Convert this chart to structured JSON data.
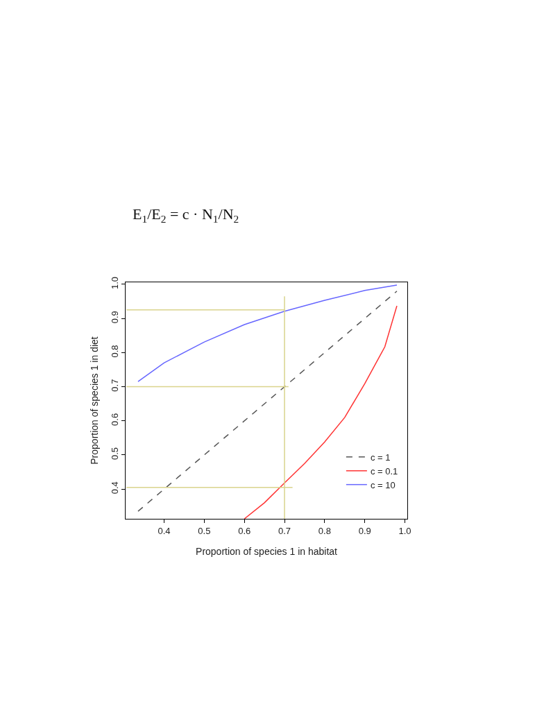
{
  "chart_data": {
    "type": "line",
    "xlabel": "Proportion of species 1 in habitat",
    "ylabel": "Proportion of species 1 in diet",
    "annotations": [
      "E$_{1}$/E$_{2}$ = c · N$_{1}$/N$_{2}$"
    ],
    "xlim": [
      0.304,
      1.006
    ],
    "ylim": [
      0.313,
      1.006
    ],
    "xticks": [
      0.4,
      0.5,
      0.6,
      0.7,
      0.8,
      0.9,
      {
        "value": 1,
        "label": "1.0"
      }
    ],
    "yticks": [
      0.4,
      0.5,
      0.6,
      0.7,
      0.8,
      0.9,
      {
        "value": 1,
        "label": "1.0"
      }
    ],
    "legend": "bottom right",
    "series": [
      {
        "name": "c = 1",
        "color": "#555555",
        "line_style": "dashed",
        "x": [
          0.335,
          0.98
        ],
        "values": [
          0.335,
          0.98
        ]
      },
      {
        "name": "c = 0.1",
        "color": "#ff3333",
        "x": [
          0.6,
          0.65,
          0.7,
          0.75,
          0.8,
          0.85,
          0.9,
          0.95,
          0.98
        ],
        "values": [
          0.313,
          0.36,
          0.418,
          0.475,
          0.538,
          0.61,
          0.709,
          0.817,
          0.937
        ]
      },
      {
        "name": "c = 10",
        "color": "#6666ff",
        "x": [
          0.335,
          0.4,
          0.5,
          0.6,
          0.7,
          0.8,
          0.9,
          0.98
        ],
        "values": [
          0.715,
          0.77,
          0.831,
          0.882,
          0.921,
          0.953,
          0.982,
          0.998
        ]
      },
      {
        "color": "#d9d38c",
        "x": [
          0.7,
          0.7
        ],
        "values": [
          0.313,
          0.965
        ]
      },
      {
        "color": "#d9d38c",
        "x": [
          0.306,
          0.7
        ],
        "values": [
          0.925,
          0.925
        ]
      },
      {
        "color": "#d9d38c",
        "x": [
          0.306,
          0.71
        ],
        "values": [
          0.7,
          0.7
        ]
      },
      {
        "color": "#d9d38c",
        "x": [
          0.306,
          0.72
        ],
        "values": [
          0.405,
          0.405
        ]
      }
    ]
  }
}
